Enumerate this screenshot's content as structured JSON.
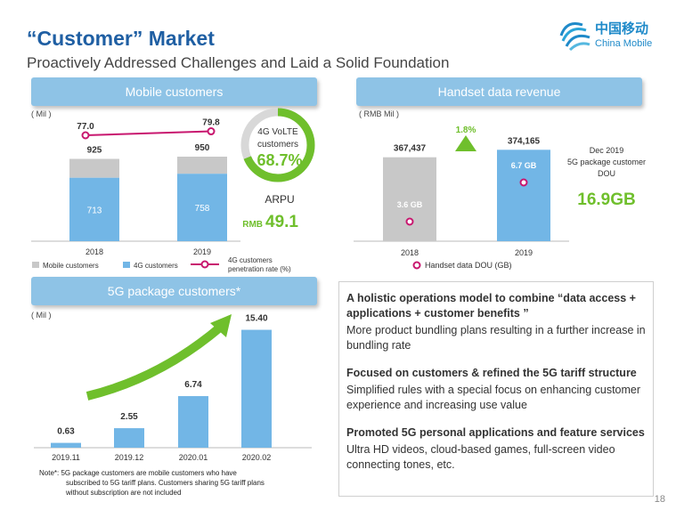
{
  "header": {
    "title": "“Customer” Market",
    "subtitle": "Proactively Addressed Challenges and Laid a Solid Foundation",
    "logo_text": "中国移动",
    "logo_sub": "China Mobile",
    "page_number": "18"
  },
  "colors": {
    "accent_blue": "#1f5fa3",
    "bar_blue": "#72b6e6",
    "bar_gray": "#c8c8c8",
    "magenta": "#c8176f",
    "green": "#6fbf2c"
  },
  "mobile": {
    "banner": "Mobile customers",
    "unit": "( Mil )",
    "arpu_label": "ARPU",
    "arpu_prefix": "RMB",
    "arpu_value": "49.1",
    "volte_line1": "4G VoLTE",
    "volte_line2": "customers",
    "volte_value": "68.7%",
    "volte_fraction": 0.687,
    "legend_mobile": "Mobile customers",
    "legend_4g": "4G customers",
    "legend_rate_line1": "4G customers",
    "legend_rate_line2": "penetration rate (%)"
  },
  "handset": {
    "banner": "Handset data revenue",
    "unit": "( RMB Mil )",
    "growth": "1.8%",
    "dec_line1": "Dec 2019",
    "dec_line2": "5G package customer",
    "dec_line3": "DOU",
    "dou_value": "16.9GB",
    "legend_dou": "Handset data DOU (GB)"
  },
  "fiveg": {
    "banner": "5G package customers*",
    "unit": "( Mil )"
  },
  "chart_data": [
    {
      "type": "bar",
      "categories": [
        "2018",
        "2019"
      ],
      "series": [
        {
          "name": "Mobile customers",
          "values": [
            925,
            950
          ]
        },
        {
          "name": "4G customers",
          "values": [
            713,
            758
          ]
        },
        {
          "name": "4G customers penetration rate (%)",
          "values": [
            77.0,
            79.8
          ]
        }
      ],
      "ylim": [
        0,
        1000
      ]
    },
    {
      "type": "bar",
      "categories": [
        "2018",
        "2019"
      ],
      "series": [
        {
          "name": "Handset data revenue",
          "values": [
            367437,
            374165
          ]
        },
        {
          "name": "Handset data DOU (GB)",
          "values": [
            3.6,
            6.7
          ]
        }
      ],
      "value_labels": [
        "367,437",
        "374,165"
      ],
      "dou_labels": [
        "3.6 GB",
        "6.7 GB"
      ]
    },
    {
      "type": "bar",
      "categories": [
        "2019.11",
        "2019.12",
        "2020.01",
        "2020.02"
      ],
      "values": [
        0.63,
        2.55,
        6.74,
        15.4
      ],
      "value_labels": [
        "0.63",
        "2.55",
        "6.74",
        "15.40"
      ]
    }
  ],
  "text_box": {
    "s1_title": "A holistic operations model to combine “data access + applications + customer benefits ”",
    "s1_body": "More product bundling plans resulting in a further increase in bundling rate",
    "s2_title": "Focused on customers & refined the 5G tariff structure",
    "s2_body": "Simplified rules with a special focus on enhancing customer experience and increasing use value",
    "s3_title": "Promoted 5G personal applications and feature services",
    "s3_body": "Ultra HD videos, cloud-based games, full-screen video connecting tones, etc."
  },
  "note": {
    "line1": "Note*: 5G package customers are mobile customers who have",
    "line2": "subscribed to 5G tariff plans. Customers sharing 5G tariff plans",
    "line3": "without subscription are not included"
  }
}
